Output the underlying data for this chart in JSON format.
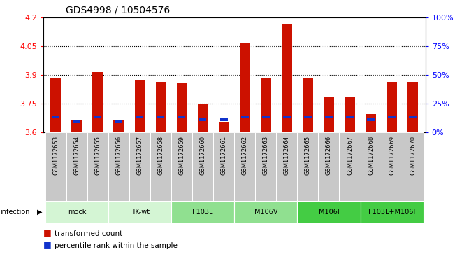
{
  "title": "GDS4998 / 10504576",
  "samples": [
    "GSM1172653",
    "GSM1172654",
    "GSM1172655",
    "GSM1172656",
    "GSM1172657",
    "GSM1172658",
    "GSM1172659",
    "GSM1172660",
    "GSM1172661",
    "GSM1172662",
    "GSM1172663",
    "GSM1172664",
    "GSM1172665",
    "GSM1172666",
    "GSM1172667",
    "GSM1172668",
    "GSM1172669",
    "GSM1172670"
  ],
  "transformed_count": [
    3.885,
    3.665,
    3.915,
    3.665,
    3.875,
    3.865,
    3.855,
    3.745,
    3.655,
    4.065,
    3.885,
    4.17,
    3.885,
    3.785,
    3.785,
    3.695,
    3.865,
    3.865
  ],
  "percentile_rank": [
    13,
    9,
    13,
    9,
    13,
    13,
    13,
    11,
    11,
    13,
    13,
    13,
    13,
    13,
    13,
    11,
    13,
    13
  ],
  "groups": [
    {
      "label": "mock",
      "start": 0,
      "end": 2,
      "color": "#d4f5d4"
    },
    {
      "label": "HK-wt",
      "start": 3,
      "end": 5,
      "color": "#d4f5d4"
    },
    {
      "label": "F103L",
      "start": 6,
      "end": 8,
      "color": "#90e090"
    },
    {
      "label": "M106V",
      "start": 9,
      "end": 11,
      "color": "#90e090"
    },
    {
      "label": "M106I",
      "start": 12,
      "end": 14,
      "color": "#44cc44"
    },
    {
      "label": "F103L+M106I",
      "start": 15,
      "end": 17,
      "color": "#44cc44"
    }
  ],
  "ylim_left": [
    3.6,
    4.2
  ],
  "ylim_right": [
    0,
    100
  ],
  "yticks_left": [
    3.6,
    3.75,
    3.9,
    4.05,
    4.2
  ],
  "yticks_right": [
    0,
    25,
    50,
    75,
    100
  ],
  "bar_color": "#cc1100",
  "blue_color": "#1133cc",
  "bar_width": 0.5,
  "baseline": 3.6,
  "sample_box_color": "#c8c8c8",
  "title_fontsize": 10
}
